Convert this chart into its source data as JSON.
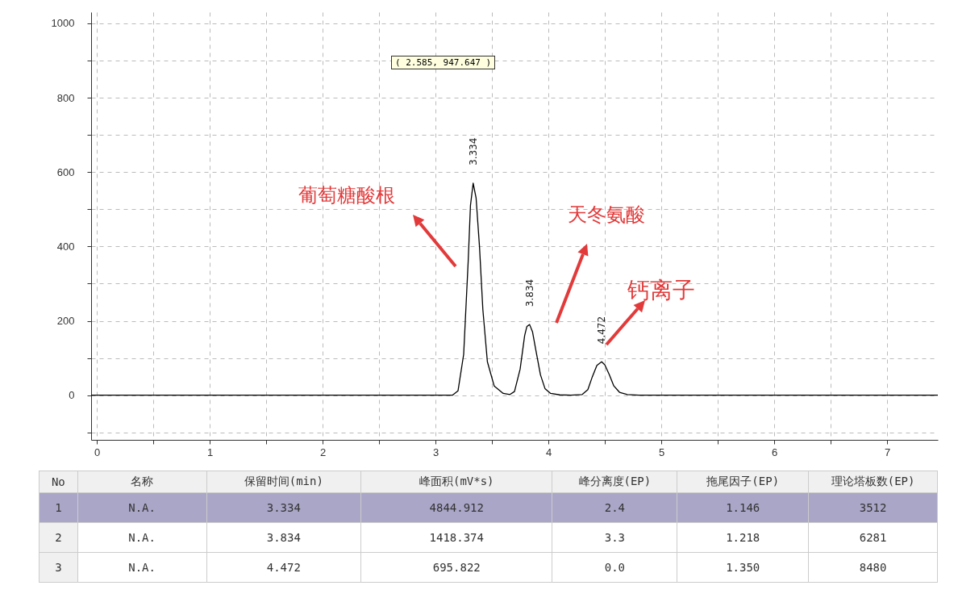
{
  "chart_data": {
    "type": "line",
    "x": [
      -0.05,
      1,
      2,
      3,
      3.1,
      3.15,
      3.2,
      3.25,
      3.29,
      3.31,
      3.334,
      3.36,
      3.39,
      3.42,
      3.46,
      3.52,
      3.6,
      3.66,
      3.7,
      3.75,
      3.79,
      3.81,
      3.834,
      3.86,
      3.89,
      3.93,
      3.97,
      4.02,
      4.1,
      4.2,
      4.3,
      4.35,
      4.39,
      4.43,
      4.472,
      4.5,
      4.54,
      4.58,
      4.63,
      4.7,
      4.8,
      5,
      6,
      7,
      7.45
    ],
    "series": [
      {
        "color": "#000000",
        "values": [
          0,
          0,
          0,
          0,
          0,
          0,
          12,
          110,
          360,
          510,
          570,
          530,
          400,
          230,
          90,
          25,
          5,
          2,
          10,
          70,
          160,
          185,
          190,
          170,
          120,
          55,
          18,
          5,
          1,
          0,
          2,
          15,
          50,
          80,
          90,
          82,
          55,
          25,
          8,
          2,
          0,
          0,
          0,
          0,
          0
        ]
      }
    ],
    "xlim": [
      -0.05,
      7.45
    ],
    "xticks": [
      0,
      {
        "value": 0.5,
        "label": null
      },
      1,
      {
        "value": 1.5,
        "label": null
      },
      2,
      {
        "value": 2.5,
        "label": null
      },
      3,
      {
        "value": 3.5,
        "label": null
      },
      4,
      {
        "value": 4.5,
        "label": null
      },
      5,
      {
        "value": 5.5,
        "label": null
      },
      6,
      {
        "value": 6.5,
        "label": null
      },
      7
    ],
    "ylim": [
      -120,
      1030
    ],
    "yticks": [
      {
        "value": -100,
        "label": null
      },
      0,
      {
        "value": 100,
        "label": null
      },
      200,
      {
        "value": 300,
        "label": null
      },
      400,
      {
        "value": 500,
        "label": null
      },
      600,
      {
        "value": 700,
        "label": null
      },
      800,
      {
        "value": 900,
        "label": null
      },
      1000
    ],
    "grid": true,
    "annotations": [
      {
        "text": "3.334",
        "x": 3.334,
        "y": 570
      },
      {
        "text": "3.834",
        "x": 3.834,
        "y": 190
      },
      {
        "text": "4.472",
        "x": 4.472,
        "y": 90
      },
      "葡萄糖酸根",
      "天冬氨酸",
      "钙离子",
      "( 2.585, 947.647 )",
      "No",
      "名称",
      "保留时间(min)",
      "峰面积(mV*s)",
      "峰分离度(EP)",
      "拖尾因子(EP)",
      "理论塔板数(EP)",
      "1",
      "N.A.",
      "3.334",
      "4844.912",
      "2.4",
      "1.146",
      "3512",
      "2",
      "N.A.",
      "3.834",
      "1418.374",
      "3.3",
      "1.218",
      "6281",
      "3",
      "N.A.",
      "4.472",
      "695.822",
      "0.0",
      "1.350",
      "8480"
    ]
  }
}
